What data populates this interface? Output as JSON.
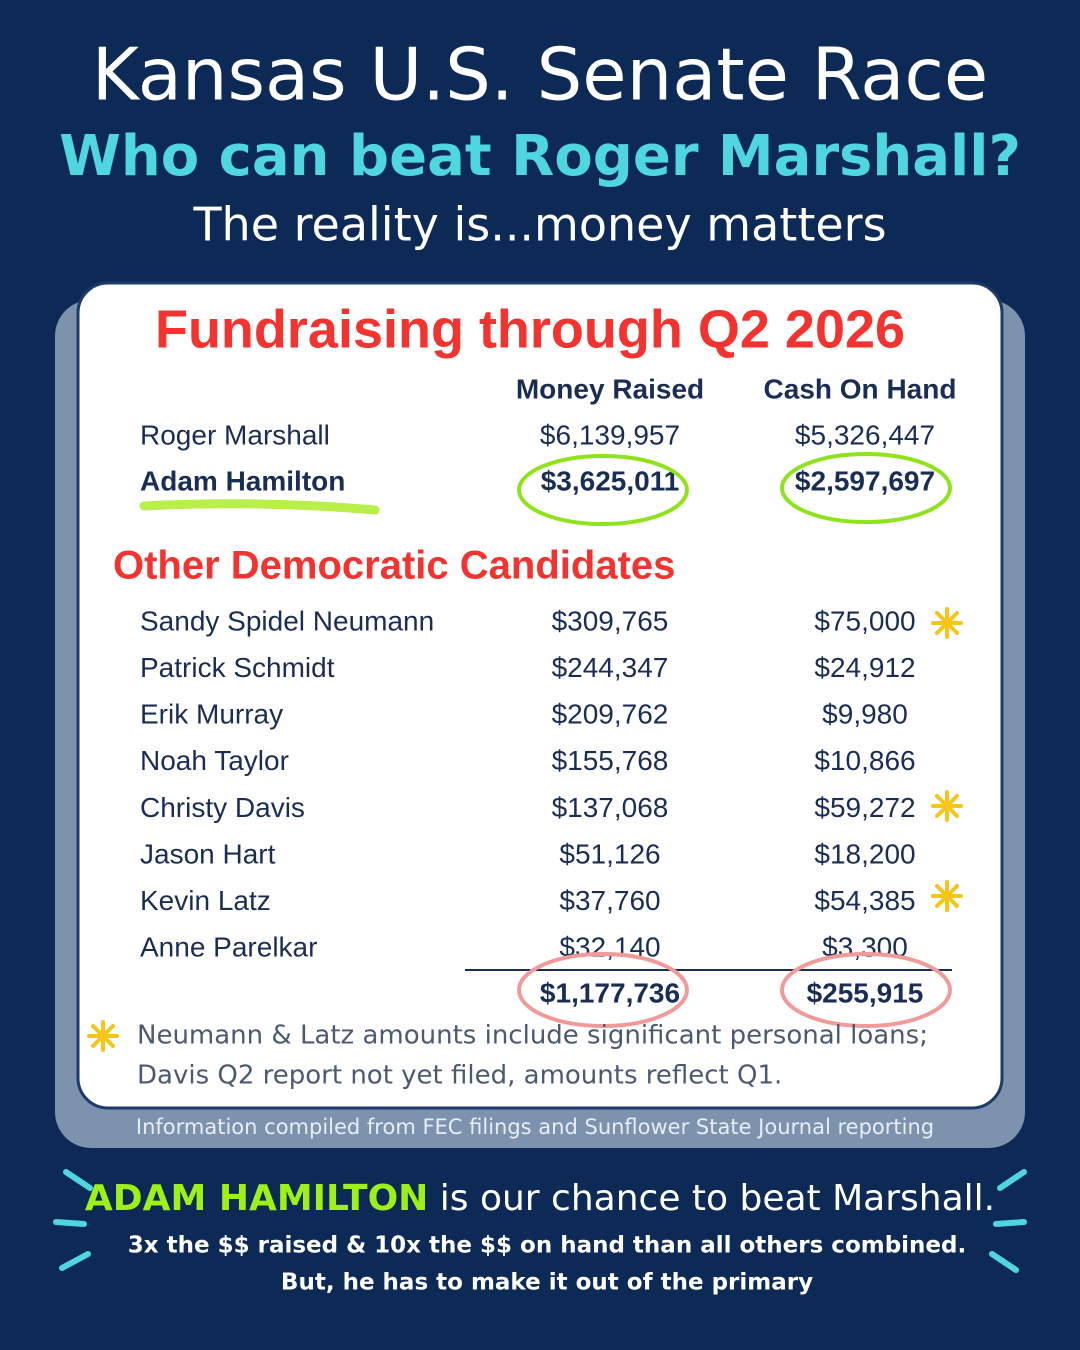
{
  "header": {
    "title": "Kansas U.S. Senate Race",
    "subtitle": "Who can beat Roger Marshall?",
    "tagline": "The reality is...money matters"
  },
  "table": {
    "title": "Fundraising through Q2 2026",
    "columns": [
      "Money Raised",
      "Cash On Hand"
    ],
    "leaders": [
      [
        "Roger Marshall",
        "$6,139,957",
        "$5,326,447"
      ],
      [
        "Adam Hamilton",
        "$3,625,011",
        "$2,597,697"
      ]
    ],
    "others_title": "Other Democratic Candidates",
    "others": [
      [
        "Sandy Spidel Neumann",
        "$309,765",
        "$75,000"
      ],
      [
        "Patrick Schmidt",
        "$244,347",
        "$24,912"
      ],
      [
        "Erik Murray",
        "$209,762",
        "$9,980"
      ],
      [
        "Noah Taylor",
        "$155,768",
        "$10,866"
      ],
      [
        "Christy Davis",
        "$137,068",
        "$59,272"
      ],
      [
        "Jason Hart",
        "$51,126",
        "$18,200"
      ],
      [
        "Kevin Latz",
        "$37,760",
        "$54,385"
      ],
      [
        "Anne Parelkar",
        "$32,140",
        "$3,300"
      ]
    ],
    "totals": [
      "$1,177,736",
      "$255,915"
    ],
    "footnote": [
      "Neumann & Latz amounts include significant personal loans;",
      "Davis Q2 report not yet filed, amounts reflect Q1."
    ],
    "source": "Information compiled from FEC filings and Sunflower State Journal reporting"
  },
  "footer": {
    "highlight": "ADAM HAMILTON",
    "line1": " is our chance to beat Marshall.",
    "line2": "3x the $$ raised & 10x the $$ on hand than all others combined.",
    "line3": "But, he has to make it out of the primary"
  }
}
